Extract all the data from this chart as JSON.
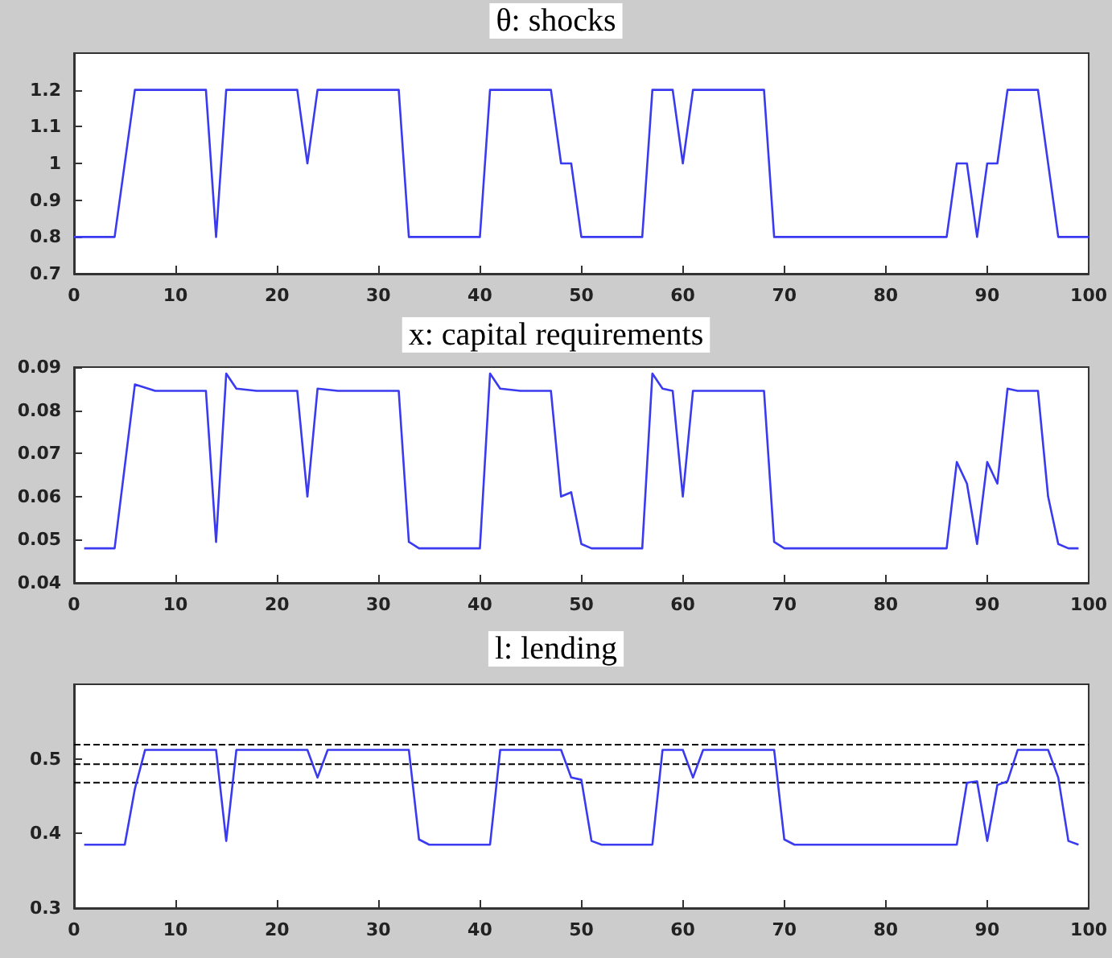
{
  "chart_data": [
    {
      "type": "line",
      "title": "θ: shocks",
      "xlim": [
        0,
        100
      ],
      "xticks": [
        0,
        10,
        20,
        30,
        40,
        50,
        60,
        70,
        80,
        90,
        100
      ],
      "ylim": [
        0.7,
        1.3
      ],
      "yticks": [
        0.7,
        0.8,
        0.9,
        1,
        1.1,
        1.2
      ],
      "grid": false,
      "marker": "none",
      "line_style": "solid",
      "series": [
        {
          "color": "#3a3af0",
          "x": [
            0,
            4,
            6,
            13,
            14,
            15,
            22,
            23,
            24,
            32,
            33,
            40,
            41,
            47,
            48,
            49,
            50,
            56,
            57,
            59,
            60,
            61,
            68,
            69,
            86,
            87,
            88,
            89,
            90,
            91,
            92,
            95,
            97,
            100
          ],
          "values": [
            0.8,
            0.8,
            1.2,
            1.2,
            0.8,
            1.2,
            1.2,
            1.0,
            1.2,
            1.2,
            0.8,
            0.8,
            1.2,
            1.2,
            1.0,
            1.0,
            0.8,
            0.8,
            1.2,
            1.2,
            1.0,
            1.2,
            1.2,
            0.8,
            0.8,
            1.0,
            1.0,
            0.8,
            1.0,
            1.0,
            1.2,
            1.2,
            0.8,
            0.8
          ]
        }
      ]
    },
    {
      "type": "line",
      "title": "x: capital requirements",
      "xlim": [
        0,
        100
      ],
      "xticks": [
        0,
        10,
        20,
        30,
        40,
        50,
        60,
        70,
        80,
        90,
        100
      ],
      "ylim": [
        0.04,
        0.09
      ],
      "yticks": [
        0.04,
        0.05,
        0.06,
        0.07,
        0.08,
        0.09
      ],
      "grid": false,
      "marker": "none",
      "line_style": "solid",
      "series": [
        {
          "color": "#3a3af0",
          "x": [
            1,
            4,
            6,
            8,
            13,
            14,
            15,
            16,
            18,
            22,
            23,
            24,
            26,
            32,
            33,
            34,
            40,
            41,
            42,
            44,
            47,
            48,
            49,
            50,
            51,
            56,
            57,
            58,
            59,
            60,
            61,
            68,
            69,
            70,
            86,
            87,
            88,
            89,
            90,
            91,
            92,
            93,
            95,
            96,
            97,
            98,
            99
          ],
          "values": [
            0.048,
            0.048,
            0.086,
            0.0845,
            0.0845,
            0.0495,
            0.0885,
            0.085,
            0.0845,
            0.0845,
            0.06,
            0.085,
            0.0845,
            0.0845,
            0.0495,
            0.048,
            0.048,
            0.0885,
            0.085,
            0.0845,
            0.0845,
            0.06,
            0.061,
            0.049,
            0.048,
            0.048,
            0.0885,
            0.085,
            0.0845,
            0.06,
            0.0845,
            0.0845,
            0.0495,
            0.048,
            0.048,
            0.068,
            0.063,
            0.049,
            0.068,
            0.063,
            0.085,
            0.0845,
            0.0845,
            0.06,
            0.049,
            0.048,
            0.048
          ]
        }
      ]
    },
    {
      "type": "line",
      "title": "l: lending",
      "xlim": [
        0,
        100
      ],
      "xticks": [
        0,
        10,
        20,
        30,
        40,
        50,
        60,
        70,
        80,
        90,
        100
      ],
      "ylim": [
        0.3,
        0.6
      ],
      "yticks": [
        0.3,
        0.4,
        0.5
      ],
      "grid": false,
      "marker": "none",
      "line_style": "solid",
      "ref_lines": [
        {
          "axis": "y",
          "value": 0.519,
          "color": "#000000",
          "line_style": "dashed"
        },
        {
          "axis": "y",
          "value": 0.493,
          "color": "#000000",
          "line_style": "dashed"
        },
        {
          "axis": "y",
          "value": 0.468,
          "color": "#000000",
          "line_style": "dashed"
        }
      ],
      "series": [
        {
          "color": "#3a3af0",
          "x": [
            1,
            5,
            6,
            7,
            14,
            15,
            16,
            23,
            24,
            25,
            33,
            34,
            35,
            41,
            42,
            48,
            49,
            50,
            51,
            52,
            57,
            58,
            60,
            61,
            62,
            69,
            70,
            71,
            87,
            88,
            89,
            90,
            91,
            92,
            93,
            96,
            97,
            98,
            99
          ],
          "values": [
            0.385,
            0.385,
            0.46,
            0.512,
            0.512,
            0.39,
            0.512,
            0.512,
            0.475,
            0.512,
            0.512,
            0.392,
            0.385,
            0.385,
            0.512,
            0.512,
            0.475,
            0.472,
            0.39,
            0.385,
            0.385,
            0.512,
            0.512,
            0.475,
            0.512,
            0.512,
            0.392,
            0.385,
            0.385,
            0.468,
            0.47,
            0.39,
            0.465,
            0.47,
            0.512,
            0.512,
            0.475,
            0.39,
            0.385
          ]
        }
      ]
    }
  ]
}
